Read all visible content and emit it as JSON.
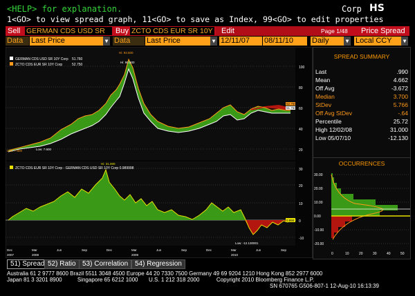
{
  "top": {
    "help_line": "<HELP> for explanation.",
    "function_line": "1<GO> to view spread graph, 11<GO> to save as Index, 99<GO> to edit properties",
    "security": "Corp",
    "mnemonic": "HS"
  },
  "command_bar": {
    "sell_label": "Sell",
    "sell_value": "GERMAN CDS USD SR",
    "buy_label": "Buy",
    "buy_value": "ZCTO CDS EUR SR 10Y",
    "edit_label": "Edit",
    "page": "Page 1/48",
    "title": "Price Spread"
  },
  "data_bar": {
    "data1_label": "Data",
    "data1_value": "Last Price",
    "data2_label": "Data",
    "data2_value": "Last Price",
    "start_date": "12/11/07",
    "end_date": "08/11/10",
    "period": "Daily",
    "currency": "Local CCY"
  },
  "upper_chart": {
    "legend": [
      {
        "name": "GERMAN CDS USD SR 10Y Corp",
        "value": "51.760",
        "color": "#ffffff"
      },
      {
        "name": "ZCTO CDS EUR SR 10Y Corp",
        "value": "52.750",
        "color": "#ff9a1a"
      }
    ],
    "annotations": {
      "hi1": "Hi: 93.500",
      "hi2": "Hi: 90.500",
      "low1": "Low: 7.800",
      "low2": "Low: 7.600",
      "last1": "51.760",
      "last2": "52.750"
    },
    "y_ticks": [
      "100",
      "80",
      "60",
      "40",
      "20"
    ]
  },
  "lower_chart": {
    "legend": "ZCTO CDS EUR SR 10Y Corp - GERMAN CDS USD SR 10Y Corp  0.989998",
    "annotations": {
      "hi": "Hi: 31.000",
      "low": "Low: -12.130001",
      "last": "0.990"
    },
    "y_ticks": [
      "30",
      "20",
      "10",
      "0",
      "-10"
    ]
  },
  "x_axis": {
    "months": [
      "Dec",
      "Mar",
      "Jun",
      "Sep",
      "Dec",
      "Mar",
      "Jun",
      "Sep",
      "Dec",
      "Mar",
      "Jun",
      "Sep"
    ],
    "years": [
      "2007",
      "2008",
      "2009",
      "2010"
    ]
  },
  "summary": {
    "title": "SPREAD SUMMARY",
    "rows": [
      {
        "k": "Last",
        "v": ".990",
        "color": "#ffffff"
      },
      {
        "k": "Mean",
        "v": "4.662",
        "color": "#ffffff"
      },
      {
        "k": "Off Avg",
        "v": "-3.672",
        "color": "#ffffff"
      },
      {
        "k": "Median",
        "v": "3.700",
        "color": "#ff9a1a"
      },
      {
        "k": "StDev",
        "v": "5.766",
        "color": "#ff9a1a"
      },
      {
        "k": "Off Avg StDev",
        "v": "-.64",
        "color": "#ff9a1a"
      },
      {
        "k": "Percentile",
        "v": "25.72",
        "color": "#ffffff"
      },
      {
        "k": "High 12/02/08",
        "v": "31.000",
        "color": "#ffffff"
      },
      {
        "k": "Low 05/07/10",
        "v": "-12.130",
        "color": "#ffffff"
      }
    ]
  },
  "occurrences": {
    "title": "OCCURRENCES",
    "y_ticks": [
      "30.00",
      "20.00",
      "10.00",
      "0.00",
      "-10.00",
      "-20.00"
    ],
    "x_ticks": [
      "0",
      "10",
      "20",
      "30",
      "40",
      "50"
    ]
  },
  "tabs": [
    "51) Spread",
    "52) Ratio",
    "53) Correlation",
    "54) Regression"
  ],
  "footer": {
    "line1": "Australia 61 2 9777 8600 Brazil 5511 3048 4500 Europe 44 20 7330 7500 Germany 49 69 9204 1210 Hong Kong 852 2977 6000",
    "line2": "Japan 81 3 3201 8900          Singapore 65 6212 1000       U.S. 1 212 318 2000           Copyright 2010 Bloomberg Finance L.P.",
    "line3": "SN 670765 G506-807-1 12-Aug-10 16:13:39"
  },
  "colors": {
    "accent_red": "#c20e1c",
    "amber": "#ffa21a",
    "spread_green": "#3a9a18",
    "spread_yellow": "#e8e000",
    "negative_red": "#b3150f"
  }
}
